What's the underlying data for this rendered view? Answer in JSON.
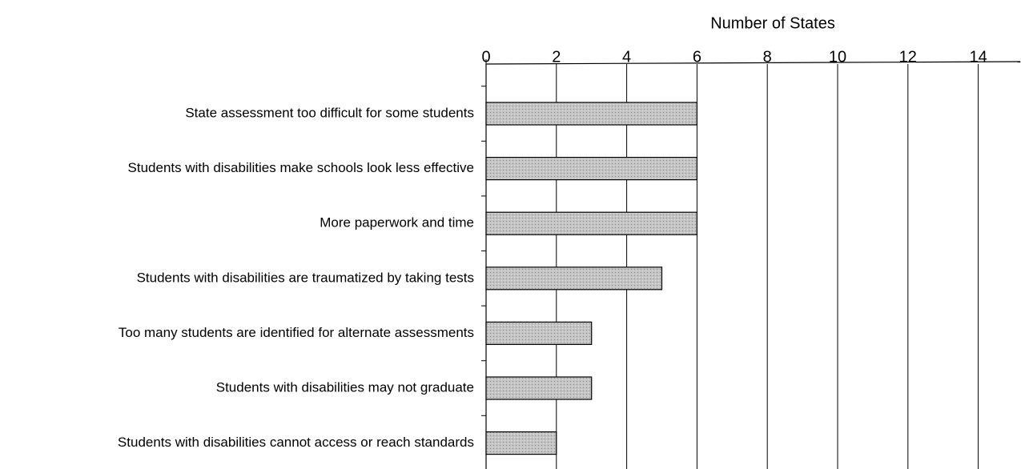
{
  "chart_data": {
    "type": "hbar",
    "xlabel": "Number of States",
    "categories": [
      "State assessment too difficult for some students",
      "Students with disabilities make schools look less effective",
      "More paperwork and time",
      "Students with disabilities are traumatized by taking tests",
      "Too many students are identified for alternate assessments",
      "Students with disabilities may not graduate",
      "Students with disabilities cannot access or reach standards"
    ],
    "values": [
      6,
      6,
      6,
      5,
      3,
      3,
      2
    ],
    "color": "#bdbdbd",
    "xlim": [
      0,
      15.2
    ],
    "xticks": [
      0,
      2,
      4,
      6,
      8,
      10,
      12,
      14
    ],
    "grid": true
  }
}
